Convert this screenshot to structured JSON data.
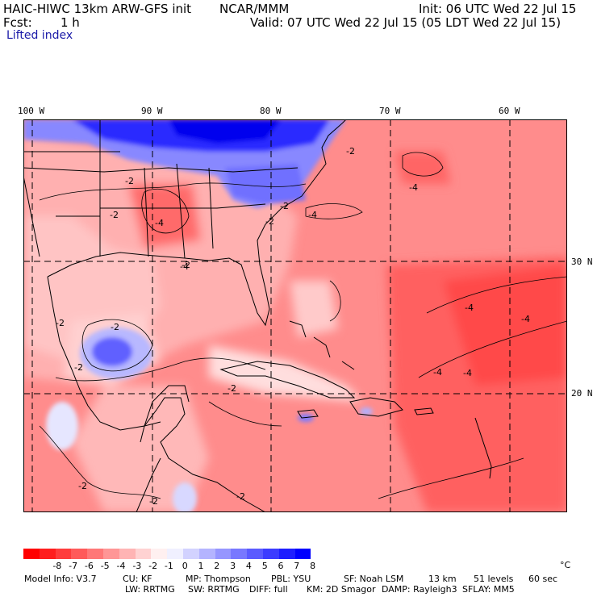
{
  "header": {
    "model": "HAIC-HIWC 13km ARW-GFS init",
    "org": "NCAR/MMM",
    "init": "Init: 06 UTC Wed 22 Jul 15",
    "fcst_label": "Fcst:",
    "fcst_value": "1 h",
    "valid": "Valid: 07 UTC Wed 22 Jul 15 (05 LDT Wed 22 Jul 15)",
    "field": "Lifted index"
  },
  "map": {
    "lon_labels": [
      "100 W",
      "90 W",
      "80 W",
      "70 W",
      "60 W"
    ],
    "lat_labels": [
      "30 N",
      "20 N"
    ],
    "contour_labels": [
      "-2",
      "-2",
      "-2",
      "-2",
      "-2",
      "-2",
      "-2",
      "-2",
      "-2",
      "-2",
      "-2",
      "-2",
      "-2",
      "-4",
      "-4",
      "-4",
      "-4",
      "-4",
      "-4",
      "-4",
      "-4"
    ]
  },
  "colorbar": {
    "unit": "°C",
    "labels": [
      "-8",
      "-7",
      "-6",
      "-5",
      "-4",
      "-3",
      "-2",
      "-1",
      "0",
      "1",
      "2",
      "3",
      "4",
      "5",
      "6",
      "7",
      "8"
    ],
    "colors": [
      "#ff0000",
      "#ff1e1e",
      "#ff3c3c",
      "#ff5a5a",
      "#ff7878",
      "#ff9696",
      "#ffb4b4",
      "#ffd2d2",
      "#fff0f0",
      "#f0f0ff",
      "#d2d2ff",
      "#b4b4ff",
      "#9696ff",
      "#7878ff",
      "#5a5aff",
      "#3c3cff",
      "#1e1eff",
      "#0000ff"
    ]
  },
  "footer": {
    "line1": [
      "Model Info: V3.7",
      "CU: KF",
      "MP: Thompson",
      "PBL: YSU",
      "SF: Noah LSM",
      "13 km",
      "51 levels",
      "60 sec"
    ],
    "line2": [
      "LW: RRTMG",
      "SW: RRTMG",
      "DIFF: full",
      "KM: 2D Smagor",
      "DAMP: Rayleigh3",
      "SFLAY: MM5"
    ]
  }
}
